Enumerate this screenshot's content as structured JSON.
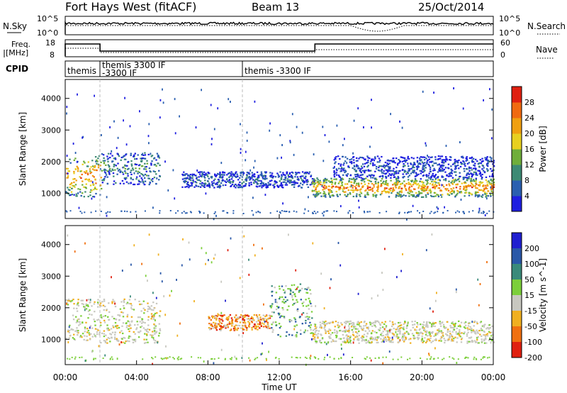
{
  "header": {
    "station": "Fort Hays West (fitACF)",
    "beam": "Beam 13",
    "date": "25/Oct/2014"
  },
  "top_panels": {
    "nsky_label": "N.Sky",
    "nsky_ticks": [
      "10^5",
      "10^0"
    ],
    "nsearch_label": "N.Search",
    "nsearch_ticks": [
      "10^5",
      "10^0"
    ],
    "freq_label_line1": "Freq.",
    "freq_label_line2": "[MHz]",
    "freq_ticks": [
      "18",
      "8"
    ],
    "nave_label": "Nave",
    "nave_ticks": [
      "60",
      "0"
    ],
    "cpid_label": "CPID",
    "cpid_segments": [
      {
        "label": "themis",
        "start_h": 0.0
      },
      {
        "label": "themis 3300 IF",
        "start_h": 1.9
      },
      {
        "label": "-3300 IF",
        "start_h": 1.9
      },
      {
        "label": "themis -3300 IF",
        "start_h": 10.0
      }
    ]
  },
  "chart_data": [
    {
      "type": "heatmap",
      "name": "power",
      "ylabel": "Slant Range [km]",
      "y_ticks": [
        "1000",
        "2000",
        "3000",
        "4000"
      ],
      "ylim": [
        200,
        4600
      ],
      "xlim": [
        0,
        24
      ],
      "colorbar": {
        "label": "Power [dB]",
        "ticks": [
          "4",
          "8",
          "12",
          "16",
          "20",
          "24",
          "28"
        ],
        "colors": [
          "#1f1fe0",
          "#2a5fb0",
          "#3d8a74",
          "#6fae3a",
          "#e8d020",
          "#f0a010",
          "#f06a10",
          "#e02010"
        ]
      },
      "bands": [
        {
          "t0": 0.0,
          "t1": 2.0,
          "r0": 900,
          "r1": 2200,
          "level": 0.75
        },
        {
          "t0": 2.0,
          "t1": 5.3,
          "r0": 1300,
          "r1": 2300,
          "level": 0.3
        },
        {
          "t0": 6.5,
          "t1": 13.8,
          "r0": 1200,
          "r1": 1700,
          "level": 0.2
        },
        {
          "t0": 13.8,
          "t1": 24.0,
          "r0": 900,
          "r1": 1500,
          "level": 0.8
        },
        {
          "t0": 15.0,
          "t1": 24.0,
          "r0": 1500,
          "r1": 2200,
          "level": 0.15
        }
      ]
    },
    {
      "type": "heatmap",
      "name": "velocity",
      "ylabel": "Slant Range [km]",
      "y_ticks": [
        "1000",
        "2000",
        "3000",
        "4000"
      ],
      "ylim": [
        200,
        4600
      ],
      "xlim": [
        0,
        24
      ],
      "colorbar": {
        "label": "Velocity [m s^-1]",
        "ticks": [
          "200",
          "100",
          "50",
          "15",
          "-15",
          "-50",
          "-100",
          "-200"
        ],
        "colors": [
          "#1f1fd0",
          "#2a58a8",
          "#3a8a7a",
          "#7ccf3a",
          "#c8c8c0",
          "#f0b020",
          "#f07010",
          "#e02010"
        ]
      },
      "bands": [
        {
          "t0": 0.0,
          "t1": 5.3,
          "r0": 900,
          "r1": 2300,
          "level": "gray"
        },
        {
          "t0": 8.0,
          "t1": 11.5,
          "r0": 1300,
          "r1": 1800,
          "level": "orange"
        },
        {
          "t0": 11.5,
          "t1": 13.8,
          "r0": 1100,
          "r1": 2800,
          "level": "green"
        },
        {
          "t0": 13.8,
          "t1": 24.0,
          "r0": 900,
          "r1": 1600,
          "level": "gray"
        }
      ]
    }
  ],
  "x_axis": {
    "label": "Time UT",
    "ticks": [
      "00:00",
      "04:00",
      "08:00",
      "12:00",
      "16:00",
      "20:00",
      "00:00"
    ]
  }
}
